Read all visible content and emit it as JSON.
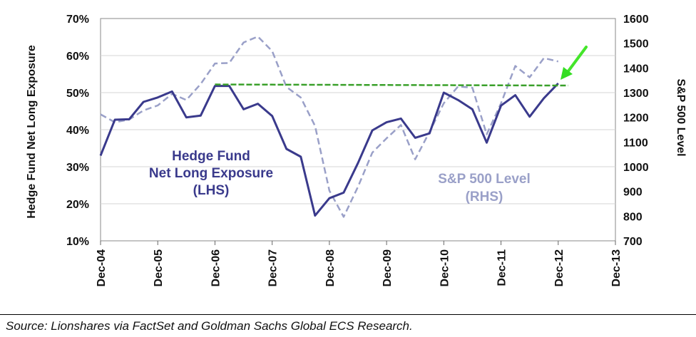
{
  "chart_data": {
    "type": "line",
    "ylabel_left": "Hedge Fund Net Long Exposure",
    "ylabel_right": "S&P 500 Level",
    "y_left_ticks": [
      "10%",
      "20%",
      "30%",
      "40%",
      "50%",
      "60%",
      "70%"
    ],
    "y_left_range": [
      10,
      70
    ],
    "y_right_ticks": [
      "700",
      "800",
      "900",
      "1000",
      "1100",
      "1200",
      "1300",
      "1400",
      "1500",
      "1600"
    ],
    "y_right_range": [
      700,
      1600
    ],
    "x_ticks": [
      "Dec-04",
      "Dec-05",
      "Dec-06",
      "Dec-07",
      "Dec-08",
      "Dec-09",
      "Dec-10",
      "Dec-11",
      "Dec-12",
      "Dec-13"
    ],
    "x_range": [
      2004.92,
      2013.92
    ],
    "grid": true,
    "series": [
      {
        "name": "Hedge Fund Net Long Exposure (LHS)",
        "axis": "left",
        "color": "#3a3a8c",
        "style": "solid",
        "points": [
          [
            2004.92,
            33
          ],
          [
            2005.17,
            42.7
          ],
          [
            2005.42,
            42.8
          ],
          [
            2005.67,
            47.5
          ],
          [
            2005.92,
            48.7
          ],
          [
            2006.17,
            50.3
          ],
          [
            2006.42,
            43.3
          ],
          [
            2006.67,
            43.8
          ],
          [
            2006.92,
            51.8
          ],
          [
            2007.17,
            51.8
          ],
          [
            2007.42,
            45.5
          ],
          [
            2007.67,
            47
          ],
          [
            2007.92,
            43.7
          ],
          [
            2008.17,
            34.8
          ],
          [
            2008.42,
            32.7
          ],
          [
            2008.67,
            16.8
          ],
          [
            2008.92,
            21.5
          ],
          [
            2009.17,
            23
          ],
          [
            2009.42,
            31
          ],
          [
            2009.67,
            39.8
          ],
          [
            2009.92,
            42
          ],
          [
            2010.17,
            43
          ],
          [
            2010.42,
            37.8
          ],
          [
            2010.67,
            39
          ],
          [
            2010.92,
            50
          ],
          [
            2011.17,
            48
          ],
          [
            2011.42,
            45.5
          ],
          [
            2011.67,
            36.5
          ],
          [
            2011.92,
            46.5
          ],
          [
            2012.17,
            49.3
          ],
          [
            2012.42,
            43.5
          ],
          [
            2012.67,
            48.5
          ],
          [
            2012.92,
            52.5
          ]
        ]
      },
      {
        "name": "S&P 500 Level (RHS)",
        "axis": "right",
        "color": "#9aa0c8",
        "style": "dashed",
        "points": [
          [
            2004.92,
            1212
          ],
          [
            2005.17,
            1180
          ],
          [
            2005.42,
            1191
          ],
          [
            2005.67,
            1228
          ],
          [
            2005.92,
            1248
          ],
          [
            2006.17,
            1295
          ],
          [
            2006.42,
            1270
          ],
          [
            2006.67,
            1335
          ],
          [
            2006.92,
            1418
          ],
          [
            2007.17,
            1420
          ],
          [
            2007.42,
            1503
          ],
          [
            2007.67,
            1527
          ],
          [
            2007.92,
            1468
          ],
          [
            2008.17,
            1323
          ],
          [
            2008.42,
            1280
          ],
          [
            2008.67,
            1165
          ],
          [
            2008.92,
            903
          ],
          [
            2009.17,
            797
          ],
          [
            2009.42,
            919
          ],
          [
            2009.67,
            1057
          ],
          [
            2009.92,
            1115
          ],
          [
            2010.17,
            1169
          ],
          [
            2010.42,
            1030
          ],
          [
            2010.67,
            1141
          ],
          [
            2010.92,
            1257
          ],
          [
            2011.17,
            1325
          ],
          [
            2011.42,
            1320
          ],
          [
            2011.67,
            1131
          ],
          [
            2011.92,
            1257
          ],
          [
            2012.17,
            1408
          ],
          [
            2012.42,
            1362
          ],
          [
            2012.67,
            1440
          ],
          [
            2012.92,
            1426
          ]
        ]
      }
    ],
    "reference_line": {
      "axis": "left",
      "value": 52.2,
      "x": [
        2006.92,
        2012.92
      ],
      "color": "#3aa02a",
      "style": "dashed"
    },
    "arrow_color": "#33dd22",
    "annotations": {
      "lhs": [
        "Hedge Fund",
        "Net Long Exposure",
        "(LHS)"
      ],
      "rhs": [
        "S&P 500 Level",
        "(RHS)"
      ]
    }
  },
  "source": "Source: Lionshares via FactSet and Goldman Sachs Global ECS Research."
}
